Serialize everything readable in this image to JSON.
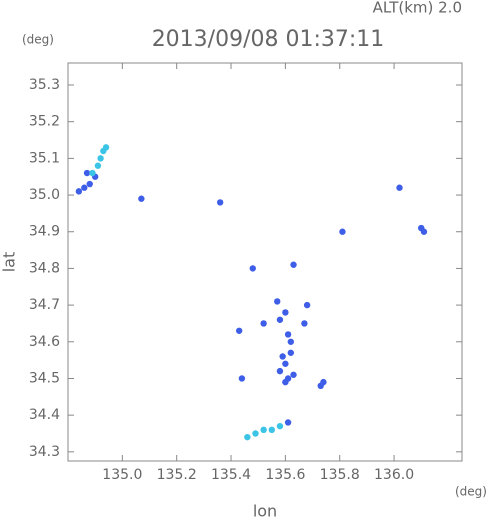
{
  "chart_data": {
    "type": "scatter",
    "title": "2013/09/08 01:37:11",
    "subtitle": "ALT(km) 2.0",
    "x_label": "lon",
    "y_label": "lat",
    "x_unit": "(deg)",
    "y_unit": "(deg)",
    "xlim": [
      134.8,
      136.25
    ],
    "ylim": [
      34.275,
      35.36
    ],
    "xticks": [
      {
        "value": 135,
        "label": "135.0"
      },
      135.2,
      135.4,
      135.6,
      135.8,
      {
        "value": 136,
        "label": "136.0"
      }
    ],
    "yticks": [
      34.3,
      34.4,
      34.5,
      34.6,
      34.7,
      34.8,
      34.9,
      {
        "value": 35,
        "label": "35.0"
      },
      35.1,
      35.2,
      35.3
    ],
    "series": [
      {
        "color": "#3f5ee8",
        "x": [
          134.84,
          134.86,
          134.88,
          134.9,
          134.87,
          135.07,
          135.36,
          135.48,
          135.63,
          135.81,
          136.02,
          136.1,
          136.11,
          135.43,
          135.52,
          135.57,
          135.58,
          135.6,
          135.61,
          135.62,
          135.59,
          135.6,
          135.61,
          135.63,
          135.68,
          135.67,
          135.44,
          135.58,
          135.6,
          135.62,
          135.73,
          135.74,
          135.61
        ],
        "values": [
          35.01,
          35.02,
          35.03,
          35.05,
          35.06,
          34.99,
          34.98,
          34.8,
          34.81,
          34.9,
          35.02,
          34.91,
          34.9,
          34.63,
          34.65,
          34.71,
          34.66,
          34.68,
          34.62,
          34.6,
          34.56,
          34.54,
          34.5,
          34.51,
          34.7,
          34.65,
          34.5,
          34.52,
          34.49,
          34.57,
          34.48,
          34.49,
          34.38
        ]
      },
      {
        "color": "#3cc4e6",
        "x": [
          134.89,
          134.91,
          134.92,
          134.93,
          134.94,
          135.46,
          135.49,
          135.52,
          135.55,
          135.58
        ],
        "values": [
          35.06,
          35.08,
          35.1,
          35.12,
          35.13,
          34.34,
          34.35,
          34.36,
          34.36,
          34.37
        ]
      }
    ]
  }
}
